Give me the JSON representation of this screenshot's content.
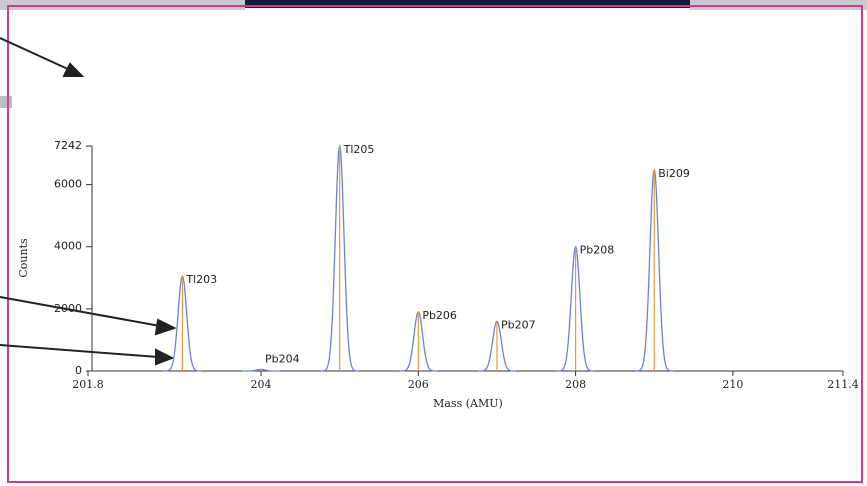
{
  "chart_data": {
    "type": "peaks",
    "x_label": "Mass (AMU)",
    "y_label": "Counts",
    "x": [
      203.0,
      204.0,
      205.0,
      206.0,
      207.0,
      208.0,
      209.0
    ],
    "values": [
      3050,
      50,
      7242,
      1900,
      1600,
      4000,
      6470
    ],
    "peak_labels": [
      "Tl203",
      "Pb204",
      "Tl205",
      "Pb206",
      "Pb207",
      "Pb208",
      "Bi209"
    ],
    "line_color": "#6e82d6",
    "stick_color": "#e89a3c",
    "xlim": [
      201.8,
      211.4
    ],
    "xticks": [
      201.8,
      204,
      206,
      208,
      210,
      211.4
    ],
    "ylim": [
      0,
      7242
    ],
    "yticks": [
      0,
      2000,
      4000,
      6000,
      7242
    ]
  }
}
